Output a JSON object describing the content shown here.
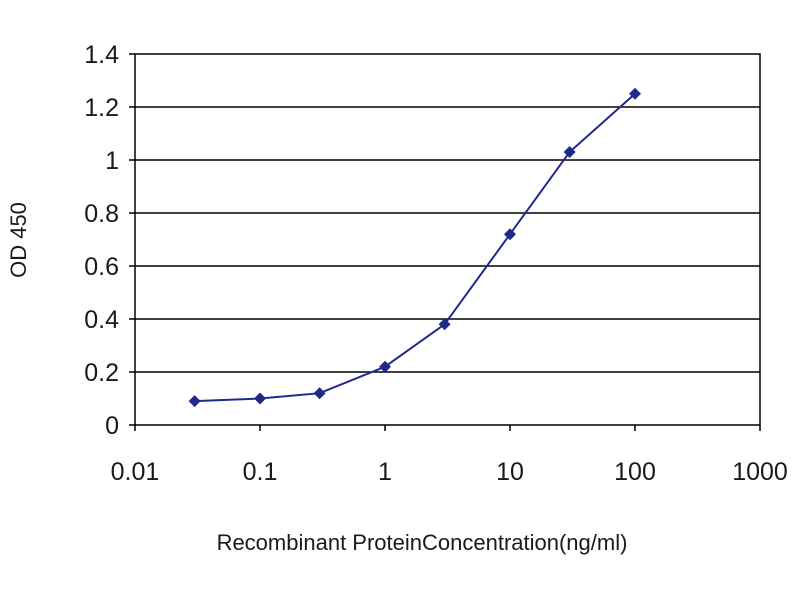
{
  "chart_data": {
    "type": "line",
    "title": "",
    "xlabel": "Recombinant ProteinConcentration(ng/ml)",
    "ylabel": "OD 450",
    "x_scale": "log",
    "xlim": [
      0.01,
      1000
    ],
    "ylim": [
      0,
      1.4
    ],
    "x_ticks": [
      0.01,
      0.1,
      1,
      10,
      100,
      1000
    ],
    "x_tick_labels": [
      "0.01",
      "0.1",
      "1",
      "10",
      "100",
      "1000"
    ],
    "y_ticks": [
      0,
      0.2,
      0.4,
      0.6,
      0.8,
      1.0,
      1.2,
      1.4
    ],
    "y_tick_labels": [
      "0",
      "0.2",
      "0.4",
      "0.6",
      "0.8",
      "1",
      "1.2",
      "1.4"
    ],
    "grid": "horizontal",
    "legend": "none",
    "series": [
      {
        "color": "#1f2a8c",
        "x": [
          0.03,
          0.1,
          0.3,
          1,
          3,
          10,
          30,
          100
        ],
        "y": [
          0.09,
          0.1,
          0.12,
          0.22,
          0.38,
          0.72,
          1.03,
          1.25
        ]
      }
    ]
  }
}
